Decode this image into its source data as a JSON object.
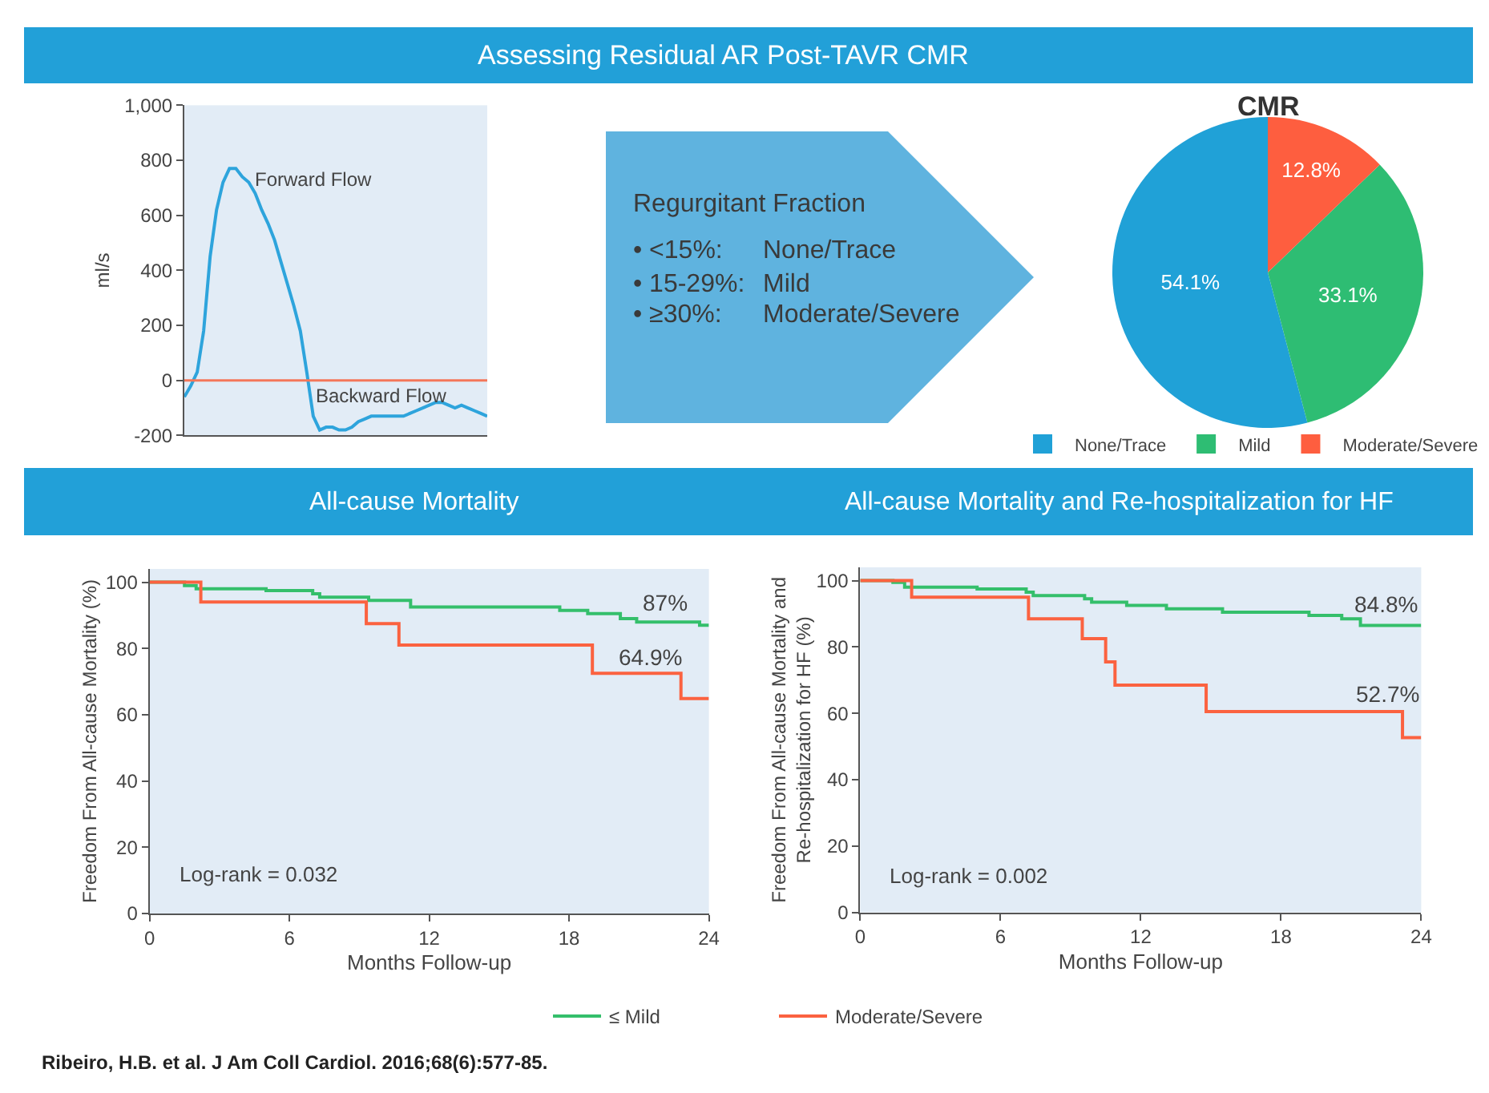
{
  "chart_data": [
    {
      "type": "line",
      "title": "Assessing Residual AR Post-TAVR CMR",
      "ylabel": "ml/s",
      "categories": [
        null,
        null,
        null,
        null,
        null,
        null,
        null,
        null,
        null,
        null,
        null,
        null,
        null,
        null,
        null,
        null,
        null,
        null,
        null,
        null,
        null,
        null,
        null,
        null,
        null,
        null,
        null,
        null,
        null,
        null,
        null,
        null,
        null,
        null,
        null,
        null,
        null,
        null,
        null,
        null,
        null,
        null,
        null,
        null,
        null,
        null,
        null,
        null
      ],
      "series": [
        {
          "color": "#2ea4dc",
          "values": [
            -60,
            -20,
            30,
            180,
            450,
            620,
            720,
            770,
            770,
            740,
            720,
            680,
            620,
            570,
            510,
            430,
            350,
            270,
            180,
            30,
            -130,
            -180,
            -170,
            -170,
            -180,
            -180,
            -170,
            -150,
            -140,
            -130,
            -130,
            -130,
            -130,
            -130,
            -130,
            -120,
            -110,
            -100,
            -90,
            -80,
            -80,
            -90,
            -100,
            -90,
            -100,
            -110,
            -120,
            -130
          ]
        }
      ],
      "ylim": [
        -200,
        1000
      ],
      "yticks": [
        {
          "value": 1000,
          "label": "1,000"
        },
        800,
        600,
        400,
        200,
        0,
        -200
      ],
      "tick_labels": "y",
      "ref_lines": [
        {
          "axis": "y",
          "value": 0,
          "color": "#f4775a"
        }
      ],
      "annotations": [
        "Forward Flow",
        "Backward Flow"
      ]
    },
    {
      "type": "other",
      "title": "Regurgitant Fraction",
      "annotations": [
        "• <15%:",
        "None/Trace",
        "• 15-29%:",
        "Mild",
        "• ≥30%:",
        "Moderate/Severe"
      ]
    },
    {
      "type": "pie",
      "title": "CMR",
      "categories": [
        "None/Trace",
        "Mild",
        "Moderate/Severe"
      ],
      "values": [
        54.1,
        33.1,
        12.8
      ],
      "colors": [
        "#20a1d7",
        "#2ebd73",
        "#fe5e3f"
      ],
      "value_labels": [
        "54.1%",
        "33.1%",
        "12.8%"
      ],
      "legend": "bottom"
    },
    {
      "type": "step",
      "title": "All-cause Mortality",
      "xlabel": "Months Follow-up",
      "ylabel": "Freedom From All-cause Mortality (%)",
      "series": [
        {
          "name": "≤ Mild",
          "color": "#34bf6b",
          "x": [
            0,
            1.5,
            2,
            5,
            7,
            7.3,
            9.4,
            11.2,
            17.6,
            18.8,
            20.2,
            20.9,
            23.6,
            24
          ],
          "values": [
            100,
            99,
            98,
            97.5,
            96.5,
            95.5,
            94.5,
            92.5,
            91.5,
            90.5,
            89,
            88,
            87,
            87
          ]
        },
        {
          "name": "Moderate/Severe",
          "color": "#fb6240",
          "x": [
            0,
            2.2,
            9.3,
            10.7,
            19,
            22.8,
            24
          ],
          "values": [
            100,
            94,
            87.5,
            81,
            72.5,
            64.9,
            64.9
          ]
        }
      ],
      "xlim": [
        0,
        24
      ],
      "xticks": [
        0,
        6,
        12,
        18,
        24
      ],
      "ylim": [
        0,
        104
      ],
      "yticks": [
        0,
        20,
        40,
        60,
        80,
        100
      ],
      "legend": "bottom",
      "annotations": [
        "87%",
        "64.9%",
        "Log-rank = 0.032"
      ]
    },
    {
      "type": "step",
      "title": "All-cause Mortality and Re-hospitalization for HF",
      "xlabel": "Months Follow-up",
      "ylabel": "Freedom From All-cause Mortality and\nRe-hospitalization for HF (%)",
      "series": [
        {
          "name": "≤ Mild",
          "color": "#34bf6b",
          "x": [
            0,
            1.4,
            1.9,
            5,
            7.1,
            7.4,
            9.6,
            9.9,
            11.4,
            13.1,
            15.5,
            19.2,
            20.6,
            21.4,
            24
          ],
          "values": [
            100,
            99.5,
            98,
            97.5,
            96.5,
            95.5,
            94.5,
            93.5,
            92.5,
            91.5,
            90.5,
            89.5,
            88.5,
            86.5,
            86.5
          ]
        },
        {
          "name": "Moderate/Severe",
          "color": "#fb6240",
          "x": [
            0,
            2.2,
            7.2,
            9.5,
            10.5,
            10.9,
            14.8,
            23.2,
            24
          ],
          "values": [
            100,
            95,
            88.5,
            82.5,
            75.5,
            68.5,
            60.5,
            52.7,
            52.7
          ]
        }
      ],
      "xlim": [
        0,
        24
      ],
      "xticks": [
        0,
        6,
        12,
        18,
        24
      ],
      "ylim": [
        0,
        104
      ],
      "yticks": [
        0,
        20,
        40,
        60,
        80,
        100
      ],
      "legend": "bottom",
      "annotations": [
        "84.8%",
        "52.7%",
        "Log-rank = 0.002",
        "Ribeiro, H.B. et al. J Am Coll Cardiol. 2016;68(6):577-85."
      ]
    }
  ]
}
